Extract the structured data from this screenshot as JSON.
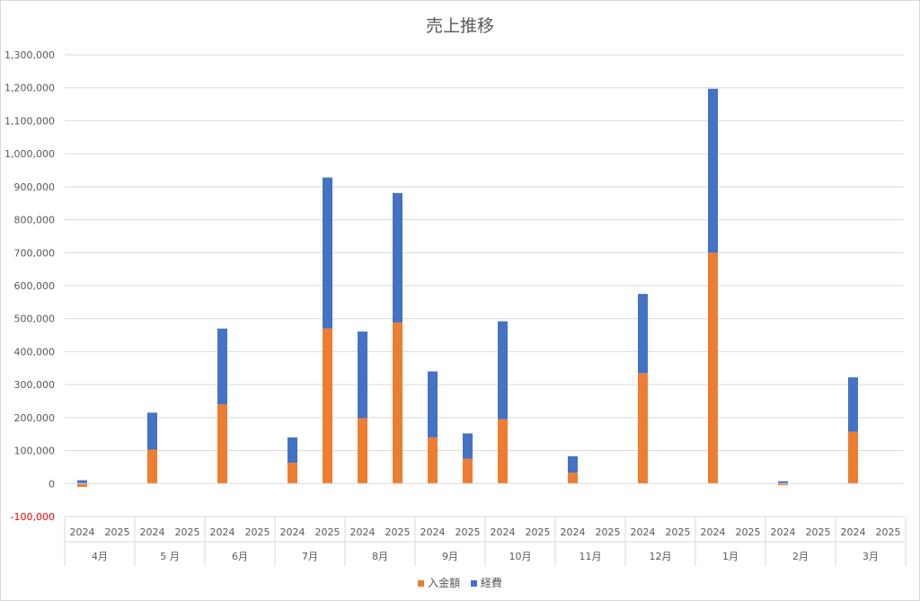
{
  "chart_data": {
    "type": "bar",
    "stacked": true,
    "title": "売上推移",
    "ylim": [
      -100000,
      1300000
    ],
    "ytick_step": 100000,
    "ytick_labels": [
      "-100,000",
      "0",
      "100,000",
      "200,000",
      "300,000",
      "400,000",
      "500,000",
      "600,000",
      "700,000",
      "800,000",
      "900,000",
      "1,000,000",
      "1,100,000",
      "1,200,000",
      "1,300,000"
    ],
    "grid": true,
    "legend_position": "bottom",
    "groups": [
      "4月",
      "5 月",
      "6月",
      "7月",
      "8月",
      "9月",
      "10月",
      "11月",
      "12月",
      "1月",
      "2月",
      "3月"
    ],
    "subcategories": [
      "2024",
      "2025"
    ],
    "series": [
      {
        "name": "入金額",
        "color": "#ED7D31",
        "values": [
          [
            -10000,
            0
          ],
          [
            103000,
            0
          ],
          [
            240000,
            0
          ],
          [
            63000,
            470000
          ],
          [
            198000,
            488000
          ],
          [
            140000,
            75000
          ],
          [
            195000,
            0
          ],
          [
            33000,
            0
          ],
          [
            335000,
            0
          ],
          [
            700000,
            0
          ],
          [
            -5000,
            0
          ],
          [
            157000,
            0
          ]
        ]
      },
      {
        "name": "経費",
        "color": "#4472C4",
        "values": [
          [
            10000,
            0
          ],
          [
            112000,
            0
          ],
          [
            230000,
            0
          ],
          [
            77000,
            458000
          ],
          [
            263000,
            393000
          ],
          [
            200000,
            77000
          ],
          [
            297000,
            0
          ],
          [
            50000,
            0
          ],
          [
            240000,
            0
          ],
          [
            497000,
            0
          ],
          [
            7000,
            0
          ],
          [
            165000,
            0
          ]
        ]
      }
    ]
  }
}
